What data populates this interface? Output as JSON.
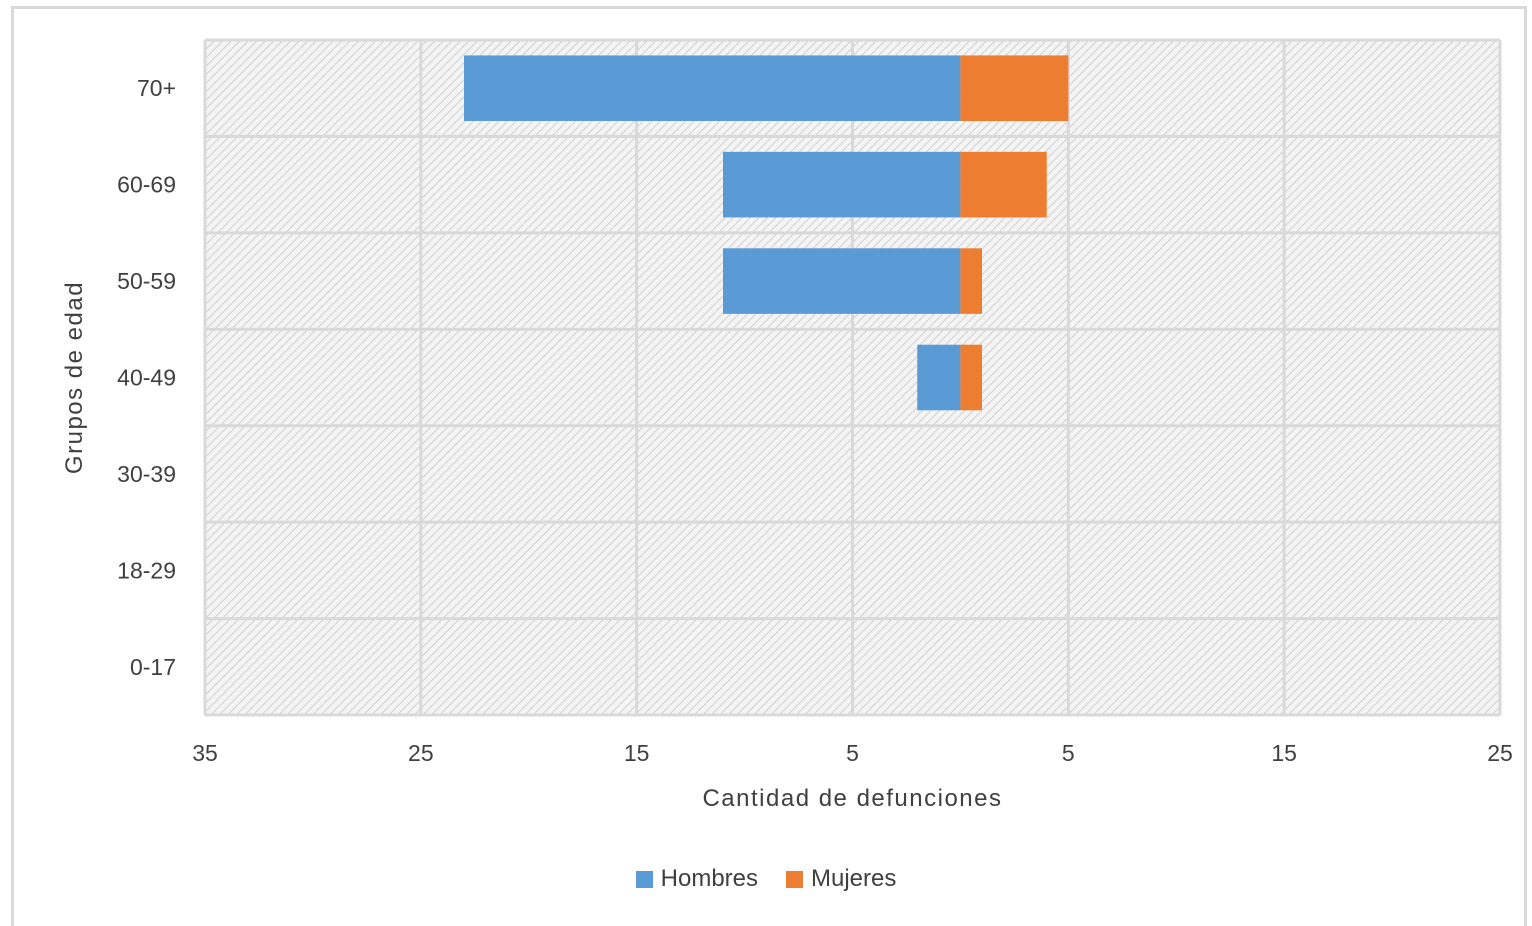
{
  "chart_data": {
    "type": "bar",
    "orientation": "horizontal",
    "layout": "population-pyramid",
    "categories": [
      "70+",
      "60-69",
      "50-59",
      "40-49",
      "30-39",
      "18-29",
      "0-17"
    ],
    "series": [
      {
        "name": "Hombres",
        "values": [
          23,
          11,
          11,
          2,
          0,
          0,
          0
        ],
        "side": "left",
        "color": "#5b9bd5"
      },
      {
        "name": "Mujeres",
        "values": [
          5,
          4,
          1,
          1,
          0,
          0,
          0
        ],
        "side": "right",
        "color": "#ed7d31"
      }
    ],
    "xlabel": "Cantidad de defunciones",
    "ylabel": "Grupos de edad",
    "xlim": [
      -35,
      25
    ],
    "xticks": [
      -35,
      -25,
      -15,
      -5,
      5,
      15,
      25
    ],
    "xtick_labels": [
      "35",
      "25",
      "15",
      "5",
      "5",
      "15",
      "25"
    ],
    "grid": true,
    "legend_position": "bottom"
  }
}
